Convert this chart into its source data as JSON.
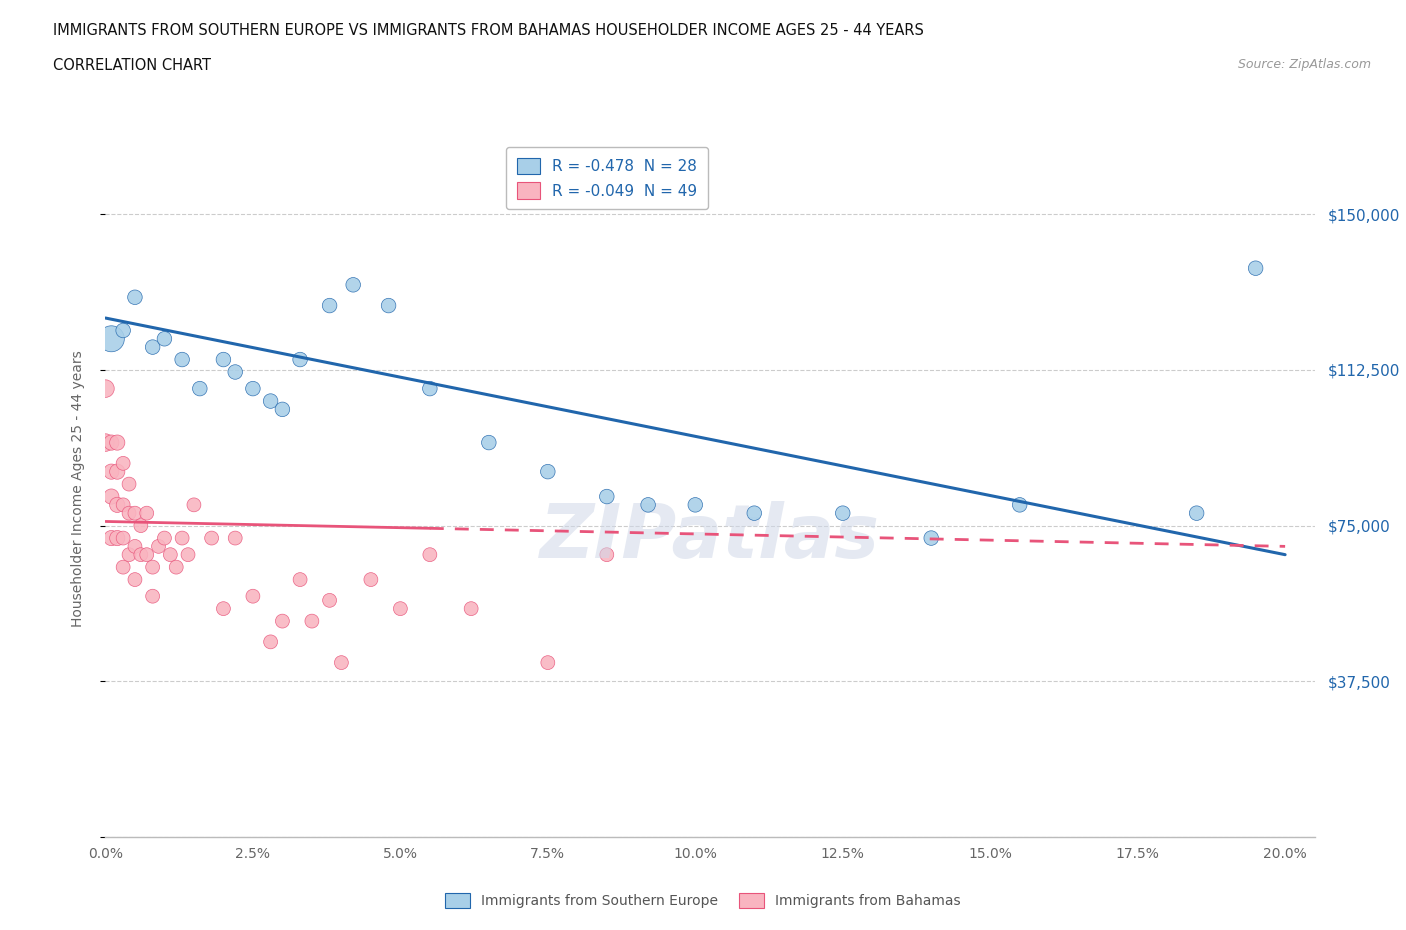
{
  "title_line1": "IMMIGRANTS FROM SOUTHERN EUROPE VS IMMIGRANTS FROM BAHAMAS HOUSEHOLDER INCOME AGES 25 - 44 YEARS",
  "title_line2": "CORRELATION CHART",
  "source_text": "Source: ZipAtlas.com",
  "ylabel": "Householder Income Ages 25 - 44 years",
  "xlim": [
    0.0,
    0.205
  ],
  "ylim": [
    0,
    168000
  ],
  "yticks": [
    0,
    37500,
    75000,
    112500,
    150000
  ],
  "ytick_labels_right": [
    "",
    "$37,500",
    "$75,000",
    "$112,500",
    "$150,000"
  ],
  "xticks": [
    0.0,
    0.025,
    0.05,
    0.075,
    0.1,
    0.125,
    0.15,
    0.175,
    0.2
  ],
  "xtick_labels": [
    "0.0%",
    "2.5%",
    "5.0%",
    "7.5%",
    "10.0%",
    "12.5%",
    "15.0%",
    "17.5%",
    "20.0%"
  ],
  "color_blue": "#a8cfe8",
  "color_pink": "#f9b4c0",
  "color_blue_line": "#2166ac",
  "color_pink_line": "#e8547a",
  "R_blue": -0.478,
  "N_blue": 28,
  "R_pink": -0.049,
  "N_pink": 49,
  "legend_label_blue": "Immigrants from Southern Europe",
  "legend_label_pink": "Immigrants from Bahamas",
  "blue_line_y0": 125000,
  "blue_line_y1": 68000,
  "pink_line_y0": 76000,
  "pink_line_y1": 70000,
  "pink_line_dashed_start": 0.055,
  "blue_x": [
    0.001,
    0.003,
    0.005,
    0.008,
    0.01,
    0.013,
    0.016,
    0.02,
    0.022,
    0.025,
    0.028,
    0.03,
    0.033,
    0.038,
    0.042,
    0.048,
    0.055,
    0.065,
    0.075,
    0.085,
    0.092,
    0.1,
    0.11,
    0.125,
    0.14,
    0.155,
    0.185,
    0.195
  ],
  "blue_y": [
    120000,
    122000,
    130000,
    118000,
    120000,
    115000,
    108000,
    115000,
    112000,
    108000,
    105000,
    103000,
    115000,
    128000,
    133000,
    128000,
    108000,
    95000,
    88000,
    82000,
    80000,
    80000,
    78000,
    78000,
    72000,
    80000,
    78000,
    137000
  ],
  "blue_size_large_idx": 0,
  "pink_x": [
    0.0,
    0.0,
    0.001,
    0.001,
    0.001,
    0.001,
    0.002,
    0.002,
    0.002,
    0.002,
    0.003,
    0.003,
    0.003,
    0.003,
    0.004,
    0.004,
    0.004,
    0.005,
    0.005,
    0.005,
    0.006,
    0.006,
    0.007,
    0.007,
    0.008,
    0.008,
    0.009,
    0.01,
    0.011,
    0.012,
    0.013,
    0.014,
    0.015,
    0.018,
    0.02,
    0.022,
    0.025,
    0.028,
    0.03,
    0.033,
    0.035,
    0.038,
    0.04,
    0.045,
    0.05,
    0.055,
    0.062,
    0.075,
    0.085
  ],
  "pink_y": [
    108000,
    95000,
    95000,
    88000,
    82000,
    72000,
    95000,
    88000,
    80000,
    72000,
    90000,
    80000,
    72000,
    65000,
    85000,
    78000,
    68000,
    78000,
    70000,
    62000,
    75000,
    68000,
    78000,
    68000,
    65000,
    58000,
    70000,
    72000,
    68000,
    65000,
    72000,
    68000,
    80000,
    72000,
    55000,
    72000,
    58000,
    47000,
    52000,
    62000,
    52000,
    57000,
    42000,
    62000,
    55000,
    68000,
    55000,
    42000,
    68000
  ],
  "grid_color": "#cccccc",
  "bg_color": "#ffffff"
}
